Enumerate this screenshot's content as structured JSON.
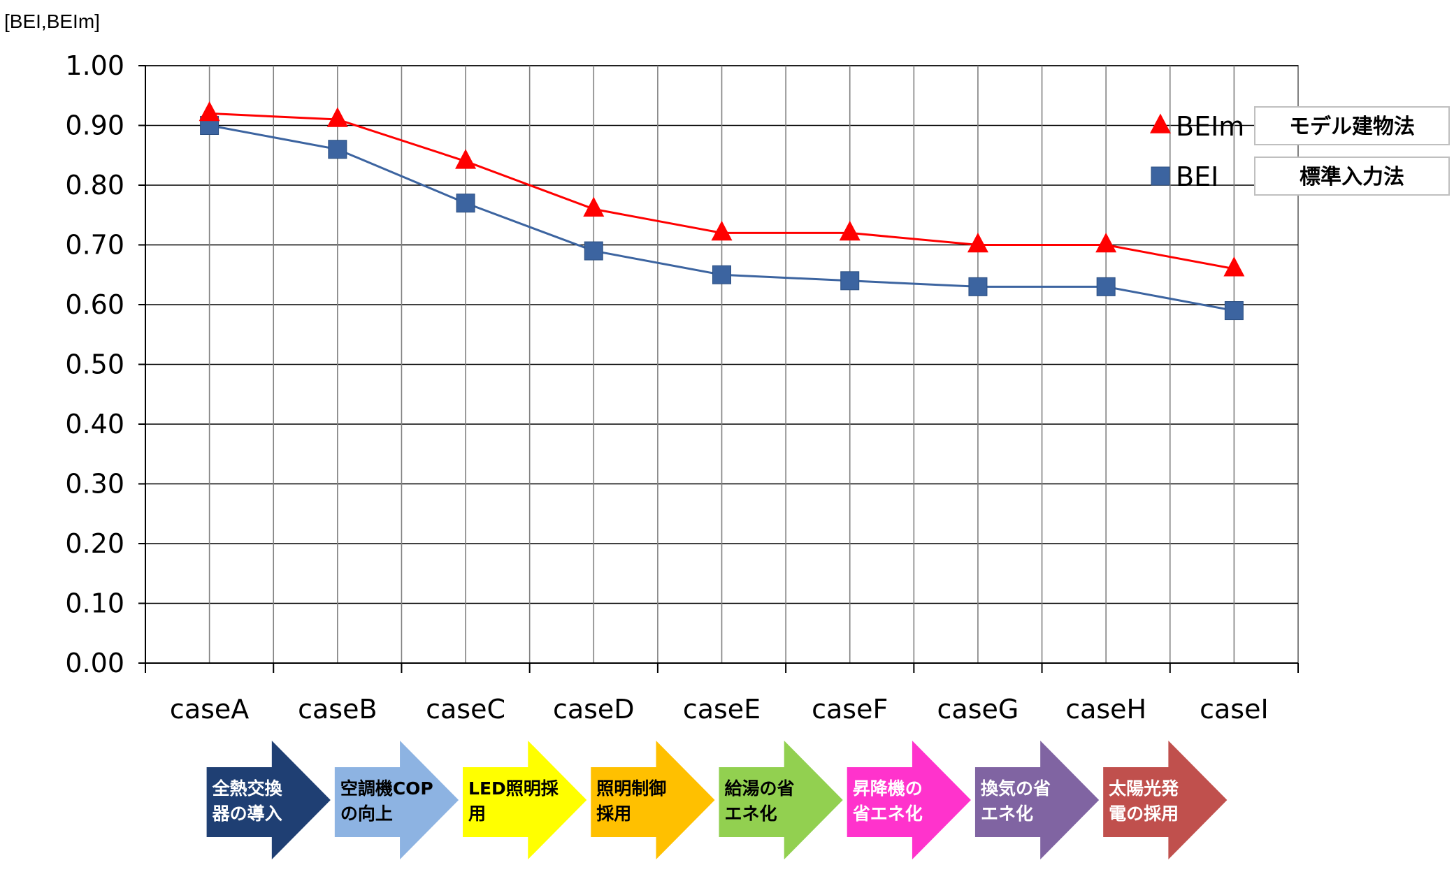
{
  "chart_data": {
    "type": "line",
    "ylabel": "[BEI,BEIm]",
    "ylim": [
      0,
      1.0
    ],
    "yticks": [
      "0.00",
      "0.10",
      "0.20",
      "0.30",
      "0.40",
      "0.50",
      "0.60",
      "0.70",
      "0.80",
      "0.90",
      "1.00"
    ],
    "categories": [
      "caseA",
      "caseB",
      "caseC",
      "caseD",
      "caseE",
      "caseF",
      "caseG",
      "caseH",
      "caseI"
    ],
    "grid": true,
    "legend_position": "top-right",
    "series": [
      {
        "name": "BEIm",
        "marker": "triangle",
        "color": "#ff0000",
        "values": [
          0.92,
          0.91,
          0.84,
          0.76,
          0.72,
          0.72,
          0.7,
          0.7,
          0.66
        ]
      },
      {
        "name": "BEI",
        "marker": "square",
        "color": "#3c64a0",
        "values": [
          0.9,
          0.86,
          0.77,
          0.69,
          0.65,
          0.64,
          0.63,
          0.63,
          0.59
        ]
      }
    ],
    "legend_notes": [
      "モデル建物法",
      "標準入力法"
    ],
    "measures": [
      {
        "lines": [
          "全熱交換",
          "器の導入"
        ],
        "color": "#1f3f73",
        "text_color": "#ffffff"
      },
      {
        "lines": [
          "空調機COP",
          "の向上"
        ],
        "color": "#8db3e2",
        "text_color": "#000000"
      },
      {
        "lines": [
          "LED照明採",
          "用"
        ],
        "color": "#ffff00",
        "text_color": "#000000"
      },
      {
        "lines": [
          "照明制御",
          "採用"
        ],
        "color": "#ffc000",
        "text_color": "#000000"
      },
      {
        "lines": [
          "給湯の省",
          "エネ化"
        ],
        "color": "#92d050",
        "text_color": "#000000"
      },
      {
        "lines": [
          "昇降機の",
          "省エネ化"
        ],
        "color": "#ff33cc",
        "text_color": "#ffffff"
      },
      {
        "lines": [
          "換気の省",
          "エネ化"
        ],
        "color": "#8064a2",
        "text_color": "#ffffff"
      },
      {
        "lines": [
          "太陽光発",
          "電の採用"
        ],
        "color": "#c0504d",
        "text_color": "#ffffff"
      }
    ]
  }
}
